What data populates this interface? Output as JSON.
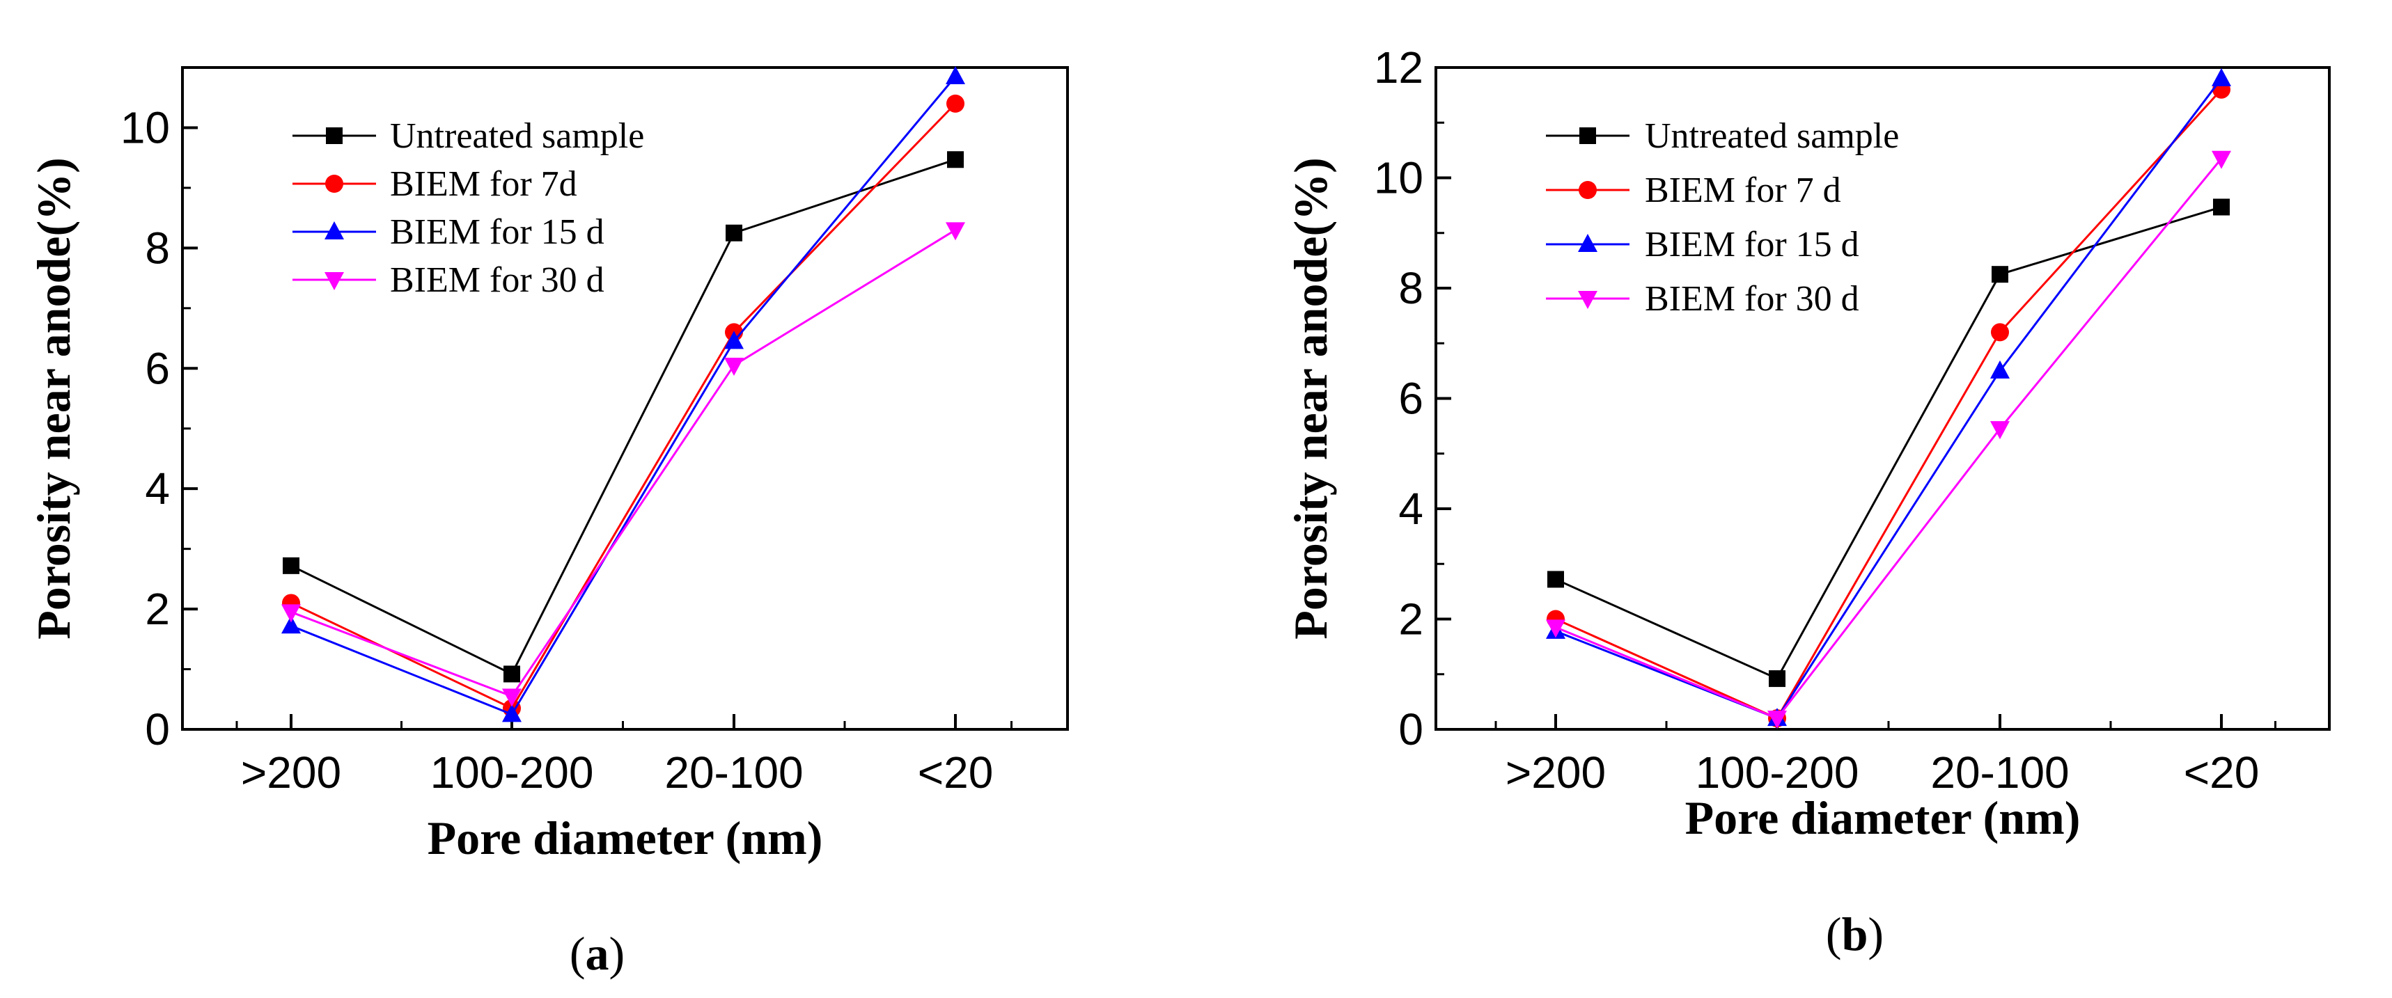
{
  "chart_data": [
    {
      "type": "line",
      "panel_label": "a",
      "xlabel": "Pore diameter (nm)",
      "ylabel": "Porosity near anode(%)",
      "categories": [
        ">200",
        "100-200",
        "20-100",
        "<20"
      ],
      "ylim": [
        0,
        11
      ],
      "yticks": [
        0,
        2,
        4,
        6,
        8,
        10
      ],
      "yticklabels": [
        "0",
        "2",
        "4",
        "6",
        "8",
        "10"
      ],
      "legend_position": "top-left",
      "series": [
        {
          "name": "Untreated sample",
          "color": "#000000",
          "marker": "square",
          "values": [
            2.72,
            0.92,
            8.25,
            9.47
          ]
        },
        {
          "name": "BIEM for 7d",
          "color": "#ff0000",
          "marker": "circle",
          "values": [
            2.1,
            0.35,
            6.6,
            10.4
          ]
        },
        {
          "name": "BIEM for 15 d",
          "color": "#0000ff",
          "marker": "triangle-up",
          "values": [
            1.72,
            0.25,
            6.45,
            10.85
          ]
        },
        {
          "name": "BIEM for 30 d",
          "color": "#ff00ff",
          "marker": "triangle-down",
          "values": [
            1.95,
            0.55,
            6.05,
            8.3
          ]
        }
      ]
    },
    {
      "type": "line",
      "panel_label": "b",
      "xlabel": "Pore diameter (nm)",
      "ylabel": "Porosity near anode(%)",
      "categories": [
        ">200",
        "100-200",
        "20-100",
        "<20"
      ],
      "ylim": [
        0,
        12
      ],
      "yticks": [
        0,
        2,
        4,
        6,
        8,
        10,
        12
      ],
      "yticklabels": [
        "0",
        "2",
        "4",
        "6",
        "8",
        "10",
        "12"
      ],
      "legend_position": "top-left",
      "series": [
        {
          "name": "Untreated sample",
          "color": "#000000",
          "marker": "square",
          "values": [
            2.72,
            0.92,
            8.25,
            9.47
          ]
        },
        {
          "name": "BIEM for 7 d",
          "color": "#ff0000",
          "marker": "circle",
          "values": [
            2.0,
            0.2,
            7.2,
            11.6
          ]
        },
        {
          "name": "BIEM for 15 d",
          "color": "#0000ff",
          "marker": "triangle-up",
          "values": [
            1.78,
            0.2,
            6.5,
            11.8
          ]
        },
        {
          "name": "BIEM for 30 d",
          "color": "#ff00ff",
          "marker": "triangle-down",
          "values": [
            1.85,
            0.2,
            5.45,
            10.35
          ]
        }
      ]
    }
  ]
}
